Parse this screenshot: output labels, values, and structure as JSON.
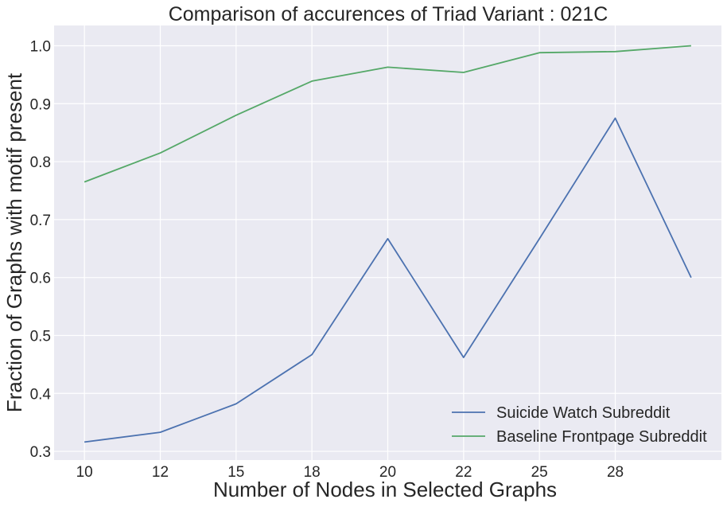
{
  "chart_data": {
    "type": "line",
    "title": "Comparison of accurences of Triad Variant  : 021C",
    "xlabel": "Number of Nodes in Selected Graphs",
    "ylabel": "Fraction of Graphs with motif present",
    "x": [
      0,
      1,
      2,
      3,
      4,
      5,
      6,
      7,
      8
    ],
    "xticks": [
      {
        "pos": 0,
        "label": "10"
      },
      {
        "pos": 1,
        "label": "12"
      },
      {
        "pos": 2,
        "label": "15"
      },
      {
        "pos": 3,
        "label": "18"
      },
      {
        "pos": 4,
        "label": "20"
      },
      {
        "pos": 5,
        "label": "22"
      },
      {
        "pos": 6,
        "label": "25"
      },
      {
        "pos": 7,
        "label": "28"
      }
    ],
    "yticks": [
      "0.3",
      "0.4",
      "0.5",
      "0.6",
      "0.7",
      "0.8",
      "0.9",
      "1.0"
    ],
    "xlim": [
      -0.4,
      8.4
    ],
    "ylim": [
      0.285,
      1.035
    ],
    "grid": true,
    "legend_position": "lower-right",
    "series": [
      {
        "name": "Suicide Watch Subreddit",
        "color": "#4c72b0",
        "values": [
          0.316,
          0.333,
          0.382,
          0.467,
          0.667,
          0.462,
          0.667,
          0.875,
          0.6
        ]
      },
      {
        "name": "Baseline Frontpage Subreddit",
        "color": "#55a868",
        "values": [
          0.765,
          0.815,
          0.88,
          0.939,
          0.963,
          0.954,
          0.988,
          0.99,
          1.0
        ]
      }
    ],
    "colors": {
      "plot_bg": "#eaeaf2",
      "grid": "#ffffff",
      "text": "#262626"
    }
  }
}
